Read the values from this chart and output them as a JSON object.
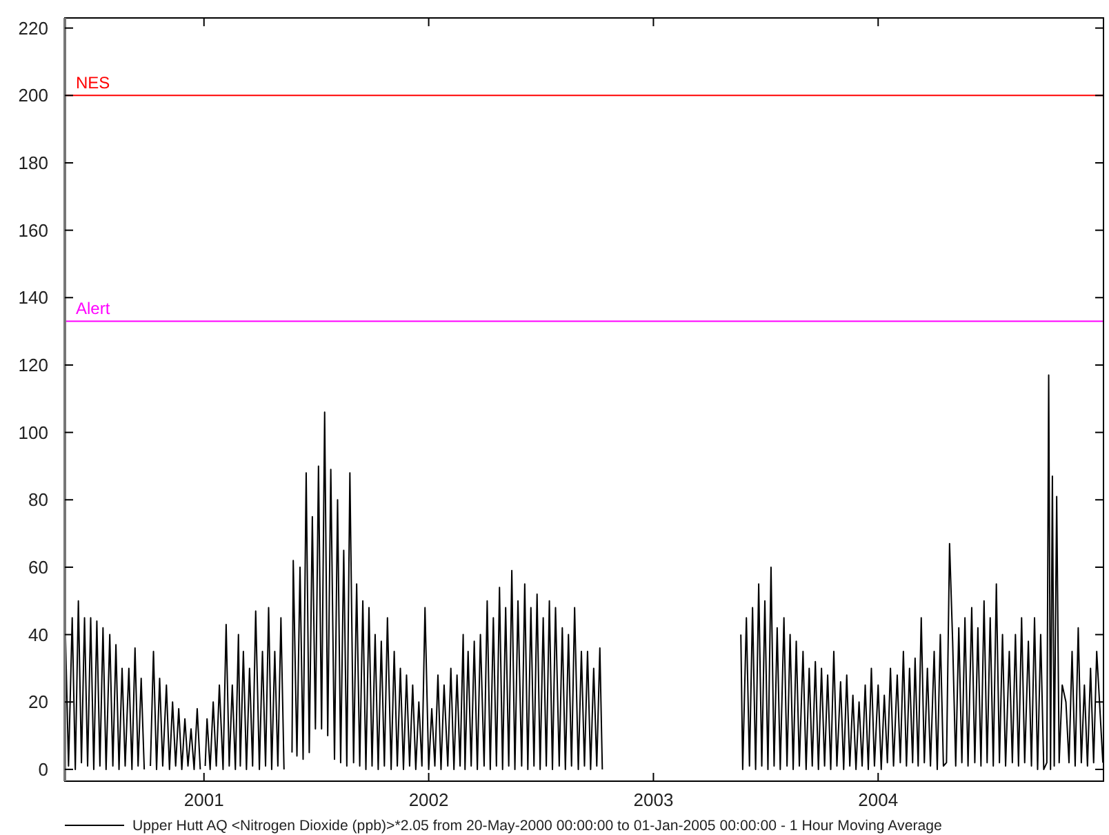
{
  "chart_data": {
    "type": "line",
    "xlim": [
      "2000-05-20",
      "2005-01-01"
    ],
    "ylim": [
      -3.5,
      223
    ],
    "xticks": [
      "2001",
      "2002",
      "2003",
      "2004"
    ],
    "yticks": [
      0,
      20,
      40,
      60,
      80,
      100,
      120,
      140,
      160,
      180,
      200,
      220
    ],
    "legend": "bottom",
    "ref_lines": [
      {
        "axis": "y",
        "value": 200,
        "label": "NES",
        "color": "#ff0000"
      },
      {
        "axis": "y",
        "value": 133,
        "label": "Alert",
        "color": "#ff00ff"
      }
    ],
    "x": [
      "2000-05-21",
      "2000-05-26",
      "2000-06-01",
      "2000-06-06",
      "2000-06-11",
      "2000-06-16",
      "2000-06-21",
      "2000-06-26",
      "2000-07-01",
      "2000-07-06",
      "2000-07-11",
      "2000-07-16",
      "2000-07-21",
      "2000-07-26",
      "2000-08-01",
      "2000-08-06",
      "2000-08-11",
      "2000-08-16",
      "2000-08-21",
      "2000-08-26",
      "2000-09-01",
      "2000-09-06",
      "2000-09-11",
      "2000-09-16",
      "2000-09-21",
      "2000-09-26",
      "2000-10-01",
      "2000-10-06",
      "2000-10-11",
      "2000-10-16",
      "2000-10-21",
      "2000-10-26",
      "2000-11-01",
      "2000-11-06",
      "2000-11-11",
      "2000-11-16",
      "2000-11-21",
      "2000-11-26",
      "2000-12-01",
      "2000-12-06",
      "2000-12-11",
      "2000-12-16",
      "2000-12-21",
      "2000-12-26",
      "2000-12-29",
      "2001-01-03",
      "2001-01-06",
      "2001-01-11",
      "2001-01-16",
      "2001-01-21",
      "2001-01-26",
      "2001-02-01",
      "2001-02-06",
      "2001-02-11",
      "2001-02-16",
      "2001-02-21",
      "2001-02-26",
      "2001-03-01",
      "2001-03-06",
      "2001-03-11",
      "2001-03-16",
      "2001-03-21",
      "2001-03-26",
      "2001-04-01",
      "2001-04-06",
      "2001-04-11",
      "2001-04-16",
      "2001-04-21",
      "2001-04-26",
      "2001-05-01",
      "2001-05-06",
      "2001-05-11",
      "2001-05-16",
      "2001-05-24",
      "2001-05-26",
      "2001-06-01",
      "2001-06-06",
      "2001-06-11",
      "2001-06-16",
      "2001-06-21",
      "2001-06-26",
      "2001-07-01",
      "2001-07-06",
      "2001-07-11",
      "2001-07-16",
      "2001-07-21",
      "2001-07-26",
      "2001-08-01",
      "2001-08-06",
      "2001-08-11",
      "2001-08-16",
      "2001-08-21",
      "2001-08-26",
      "2001-09-01",
      "2001-09-06",
      "2001-09-11",
      "2001-09-16",
      "2001-09-21",
      "2001-09-26",
      "2001-10-01",
      "2001-10-06",
      "2001-10-11",
      "2001-10-16",
      "2001-10-21",
      "2001-10-26",
      "2001-11-01",
      "2001-11-06",
      "2001-11-11",
      "2001-11-16",
      "2001-11-21",
      "2001-11-26",
      "2001-12-01",
      "2001-12-06",
      "2001-12-11",
      "2001-12-16",
      "2001-12-21",
      "2001-12-26",
      "2002-01-01",
      "2002-01-06",
      "2002-01-11",
      "2002-01-16",
      "2002-01-21",
      "2002-01-26",
      "2002-02-01",
      "2002-02-06",
      "2002-02-11",
      "2002-02-16",
      "2002-02-21",
      "2002-02-26",
      "2002-03-01",
      "2002-03-06",
      "2002-03-11",
      "2002-03-16",
      "2002-03-21",
      "2002-03-26",
      "2002-04-01",
      "2002-04-06",
      "2002-04-11",
      "2002-04-16",
      "2002-04-21",
      "2002-04-26",
      "2002-05-01",
      "2002-05-06",
      "2002-05-11",
      "2002-05-16",
      "2002-05-21",
      "2002-05-26",
      "2002-06-01",
      "2002-06-06",
      "2002-06-11",
      "2002-06-16",
      "2002-06-21",
      "2002-06-26",
      "2002-07-01",
      "2002-07-06",
      "2002-07-11",
      "2002-07-16",
      "2002-07-21",
      "2002-07-26",
      "2002-08-01",
      "2002-08-06",
      "2002-08-11",
      "2002-08-16",
      "2002-08-21",
      "2002-08-26",
      "2002-09-01",
      "2002-09-06",
      "2002-09-11",
      "2002-09-16",
      "2002-09-21",
      "2002-09-26",
      "2002-10-01",
      "2002-10-06",
      "2002-10-10",
      "2002-10-12",
      "2003-05-23",
      "2003-05-26",
      "2003-06-01",
      "2003-06-06",
      "2003-06-11",
      "2003-06-16",
      "2003-06-21",
      "2003-06-26",
      "2003-07-01",
      "2003-07-06",
      "2003-07-11",
      "2003-07-16",
      "2003-07-21",
      "2003-07-26",
      "2003-08-01",
      "2003-08-06",
      "2003-08-11",
      "2003-08-16",
      "2003-08-21",
      "2003-08-26",
      "2003-09-01",
      "2003-09-06",
      "2003-09-11",
      "2003-09-16",
      "2003-09-21",
      "2003-09-26",
      "2003-10-01",
      "2003-10-06",
      "2003-10-11",
      "2003-10-16",
      "2003-10-21",
      "2003-10-26",
      "2003-11-01",
      "2003-11-06",
      "2003-11-11",
      "2003-11-16",
      "2003-11-21",
      "2003-11-26",
      "2003-12-01",
      "2003-12-06",
      "2003-12-11",
      "2003-12-16",
      "2003-12-21",
      "2003-12-26",
      "2004-01-01",
      "2004-01-06",
      "2004-01-11",
      "2004-01-16",
      "2004-01-21",
      "2004-01-26",
      "2004-02-01",
      "2004-02-06",
      "2004-02-11",
      "2004-02-16",
      "2004-02-21",
      "2004-02-26",
      "2004-03-01",
      "2004-03-06",
      "2004-03-11",
      "2004-03-16",
      "2004-03-21",
      "2004-03-26",
      "2004-04-01",
      "2004-04-06",
      "2004-04-11",
      "2004-04-16",
      "2004-04-21",
      "2004-04-26",
      "2004-05-01",
      "2004-05-06",
      "2004-05-11",
      "2004-05-16",
      "2004-05-21",
      "2004-05-26",
      "2004-06-01",
      "2004-06-06",
      "2004-06-11",
      "2004-06-16",
      "2004-06-21",
      "2004-06-26",
      "2004-07-01",
      "2004-07-06",
      "2004-07-11",
      "2004-07-16",
      "2004-07-21",
      "2004-07-26",
      "2004-08-01",
      "2004-08-06",
      "2004-08-11",
      "2004-08-16",
      "2004-08-21",
      "2004-08-26",
      "2004-09-01",
      "2004-09-06",
      "2004-09-11",
      "2004-09-16",
      "2004-09-21",
      "2004-09-26",
      "2004-10-01",
      "2004-10-04",
      "2004-10-07",
      "2004-10-10",
      "2004-10-13",
      "2004-10-17",
      "2004-10-21",
      "2004-10-26",
      "2004-11-01",
      "2004-11-06",
      "2004-11-11",
      "2004-11-16",
      "2004-11-21",
      "2004-11-26",
      "2004-12-01",
      "2004-12-06",
      "2004-12-11",
      "2004-12-16",
      "2004-12-21",
      "2004-12-31"
    ],
    "series": [
      {
        "name": "Upper Hutt AQ <Nitrogen Dioxide (ppb)>*2.05 from 20-May-2000 00:00:00 to 01-Jan-2005 00:00:00 - 1 Hour Moving Average",
        "color": "#000000",
        "values": [
          40,
          1,
          45,
          0,
          50,
          2,
          45,
          1,
          45,
          0,
          44,
          1,
          42,
          0,
          40,
          1,
          37,
          0,
          30,
          1,
          30,
          0,
          36,
          1,
          27,
          0,
          null,
          1,
          35,
          0,
          27,
          1,
          25,
          0,
          20,
          1,
          18,
          0,
          15,
          1,
          12,
          0,
          18,
          0,
          null,
          1,
          15,
          0,
          20,
          1,
          25,
          0,
          43,
          1,
          25,
          0,
          40,
          1,
          35,
          0,
          30,
          1,
          47,
          0,
          35,
          1,
          48,
          0,
          35,
          1,
          45,
          0,
          null,
          5,
          62,
          4,
          60,
          3,
          88,
          5,
          75,
          12,
          90,
          12,
          106,
          10,
          89,
          3,
          80,
          2,
          65,
          1,
          88,
          2,
          55,
          1,
          50,
          0,
          48,
          1,
          40,
          0,
          38,
          1,
          45,
          0,
          35,
          1,
          30,
          0,
          28,
          1,
          25,
          0,
          20,
          1,
          48,
          0,
          18,
          1,
          28,
          0,
          25,
          1,
          30,
          0,
          28,
          1,
          40,
          0,
          35,
          1,
          38,
          0,
          40,
          1,
          50,
          0,
          45,
          1,
          54,
          0,
          48,
          1,
          59,
          0,
          50,
          1,
          55,
          0,
          48,
          1,
          52,
          0,
          45,
          1,
          50,
          0,
          48,
          1,
          42,
          0,
          40,
          1,
          48,
          0,
          35,
          1,
          35,
          0,
          30,
          1,
          36,
          0,
          null,
          40,
          0,
          45,
          1,
          48,
          0,
          55,
          1,
          50,
          0,
          60,
          1,
          42,
          0,
          45,
          1,
          40,
          0,
          38,
          1,
          35,
          0,
          30,
          1,
          32,
          0,
          30,
          1,
          28,
          0,
          35,
          1,
          26,
          0,
          28,
          1,
          22,
          0,
          20,
          1,
          25,
          0,
          30,
          1,
          25,
          0,
          22,
          2,
          30,
          1,
          28,
          2,
          35,
          1,
          30,
          2,
          33,
          1,
          45,
          2,
          30,
          1,
          35,
          0,
          40,
          1,
          2,
          67,
          38,
          1,
          42,
          2,
          45,
          1,
          48,
          2,
          42,
          1,
          50,
          2,
          45,
          1,
          55,
          2,
          40,
          1,
          35,
          2,
          40,
          1,
          45,
          2,
          38,
          1,
          45,
          0,
          40,
          0,
          2,
          117,
          0,
          87,
          1,
          81,
          2,
          25,
          20,
          2,
          35,
          1,
          42,
          2,
          25,
          1,
          30,
          2,
          35,
          2
        ]
      }
    ]
  }
}
